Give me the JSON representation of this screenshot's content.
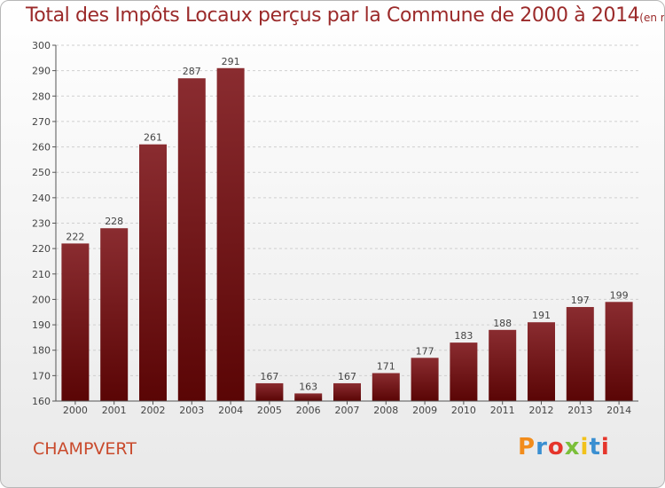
{
  "header": {
    "title": "Total des Impôts Locaux perçus par la Commune de 2000 à 2014",
    "unit": "(en milliers d'€)"
  },
  "footer": {
    "commune": "CHAMPVERT",
    "logo": "Proxiti"
  },
  "colors": {
    "title": "#9b2a2a",
    "bar_top": "#8a2c30",
    "bar_bottom": "#5a0505",
    "commune": "#c94a2c"
  },
  "chart_data": {
    "type": "bar",
    "title": "Total des Impôts Locaux perçus par la Commune de 2000 à 2014",
    "ylabel": "en milliers d'€",
    "xlabel": "",
    "categories": [
      "2000",
      "2001",
      "2002",
      "2003",
      "2004",
      "2005",
      "2006",
      "2007",
      "2008",
      "2009",
      "2010",
      "2011",
      "2012",
      "2013",
      "2014"
    ],
    "values": [
      222,
      228,
      261,
      287,
      291,
      167,
      163,
      167,
      171,
      177,
      183,
      188,
      191,
      197,
      199
    ],
    "ylim": [
      160,
      300
    ],
    "yticks": [
      160,
      170,
      180,
      190,
      200,
      210,
      220,
      230,
      240,
      250,
      260,
      270,
      280,
      290,
      300
    ],
    "grid": true
  }
}
